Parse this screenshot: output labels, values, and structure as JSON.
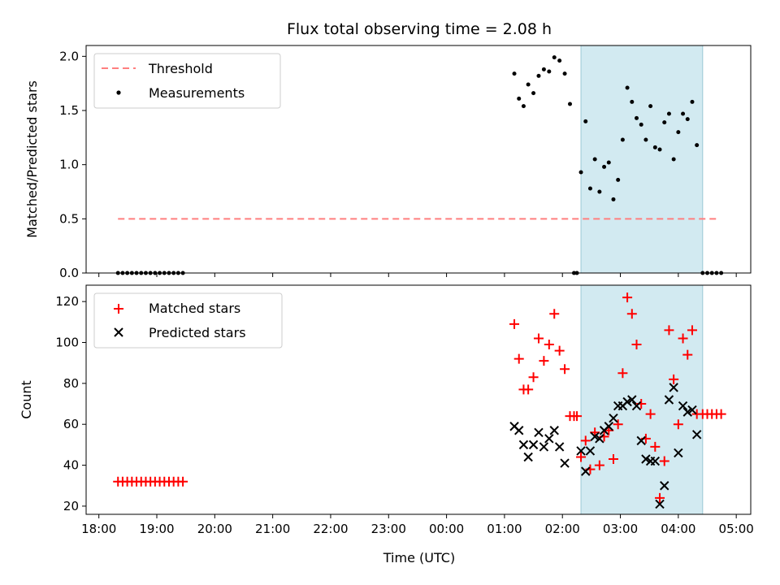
{
  "title": "Flux total observing time = 2.08 h",
  "colors": {
    "threshold": "#ff7f7f",
    "measurement": "#000000",
    "matched": "#ff0000",
    "predicted": "#000000",
    "span_fill": "#add8e6"
  },
  "chart_data": [
    {
      "type": "scatter",
      "panel": "top",
      "ylabel": "Matched/Predicted stars",
      "ylim": [
        0,
        2.1
      ],
      "yticks": [
        0,
        0.5,
        1.0,
        1.5,
        2.0
      ],
      "ytick_labels": [
        "0.0",
        "0.5",
        "1.0",
        "1.5",
        "2.0"
      ],
      "xaxis": "time (hours since 18:00 UTC of day 1)",
      "xlim": [
        -0.22,
        11.25
      ],
      "shaded_span": [
        8.32,
        10.42
      ],
      "legend": {
        "position": "upper-left",
        "entries": [
          "Threshold",
          "Measurements"
        ]
      },
      "threshold": {
        "name": "Threshold",
        "y": 0.5,
        "x_range": [
          0.33,
          10.7
        ]
      },
      "measurements": {
        "name": "Measurements",
        "x": [
          0.33,
          0.41,
          0.49,
          0.57,
          0.65,
          0.73,
          0.81,
          0.89,
          0.97,
          1.05,
          1.13,
          1.21,
          1.29,
          1.37,
          1.45,
          7.17,
          7.25,
          7.33,
          7.41,
          7.5,
          7.59,
          7.68,
          7.77,
          7.86,
          7.95,
          8.04,
          8.13,
          8.2,
          8.25,
          8.32,
          8.4,
          8.48,
          8.56,
          8.64,
          8.72,
          8.8,
          8.88,
          8.96,
          9.04,
          9.12,
          9.2,
          9.28,
          9.36,
          9.44,
          9.52,
          9.6,
          9.68,
          9.76,
          9.84,
          9.92,
          10.0,
          10.08,
          10.16,
          10.24,
          10.32,
          10.42,
          10.5,
          10.58,
          10.66,
          10.74
        ],
        "y": [
          0,
          0,
          0,
          0,
          0,
          0,
          0,
          0,
          0,
          0,
          0,
          0,
          0,
          0,
          0,
          1.84,
          1.61,
          1.54,
          1.74,
          1.66,
          1.82,
          1.88,
          1.86,
          1.99,
          1.96,
          1.84,
          1.56,
          0,
          0,
          0.93,
          1.4,
          0.78,
          1.05,
          0.75,
          0.98,
          1.02,
          0.68,
          0.86,
          1.23,
          1.71,
          1.58,
          1.43,
          1.37,
          1.23,
          1.54,
          1.16,
          1.14,
          1.39,
          1.47,
          1.05,
          1.3,
          1.47,
          1.42,
          1.58,
          1.18,
          0,
          0,
          0,
          0,
          0
        ]
      }
    },
    {
      "type": "scatter",
      "panel": "bottom",
      "ylabel": "Count",
      "xlabel": "Time (UTC)",
      "ylim": [
        16,
        128
      ],
      "yticks": [
        20,
        40,
        60,
        80,
        100,
        120
      ],
      "ytick_labels": [
        "20",
        "40",
        "60",
        "80",
        "100",
        "120"
      ],
      "xticks": [
        0,
        1,
        2,
        3,
        4,
        5,
        6,
        7,
        8,
        9,
        10,
        11
      ],
      "xtick_labels": [
        "18:00",
        "19:00",
        "20:00",
        "21:00",
        "22:00",
        "23:00",
        "00:00",
        "01:00",
        "02:00",
        "03:00",
        "04:00",
        "05:00"
      ],
      "xlim": [
        -0.22,
        11.25
      ],
      "shaded_span": [
        8.32,
        10.42
      ],
      "legend": {
        "position": "upper-left",
        "entries": [
          "Matched stars",
          "Predicted stars"
        ]
      },
      "series": [
        {
          "name": "Matched stars",
          "marker": "+",
          "x": [
            0.33,
            0.41,
            0.49,
            0.57,
            0.65,
            0.73,
            0.81,
            0.89,
            0.97,
            1.05,
            1.13,
            1.21,
            1.29,
            1.37,
            1.45,
            7.17,
            7.25,
            7.33,
            7.41,
            7.5,
            7.59,
            7.68,
            7.77,
            7.86,
            7.95,
            8.04,
            8.13,
            8.2,
            8.25,
            8.32,
            8.4,
            8.48,
            8.56,
            8.64,
            8.72,
            8.8,
            8.88,
            8.96,
            9.04,
            9.12,
            9.2,
            9.28,
            9.36,
            9.44,
            9.52,
            9.6,
            9.68,
            9.76,
            9.84,
            9.92,
            10.0,
            10.08,
            10.16,
            10.24,
            10.32,
            10.42,
            10.5,
            10.58,
            10.66,
            10.74
          ],
          "y": [
            32,
            32,
            32,
            32,
            32,
            32,
            32,
            32,
            32,
            32,
            32,
            32,
            32,
            32,
            32,
            109,
            92,
            77,
            77,
            83,
            102,
            91,
            99,
            114,
            96,
            87,
            64,
            64,
            64,
            44,
            52,
            38,
            56,
            40,
            54,
            57,
            43,
            60,
            85,
            122,
            114,
            99,
            70,
            53,
            65,
            49,
            24,
            42,
            106,
            82,
            60,
            102,
            94,
            106,
            65,
            65,
            65,
            65,
            65,
            65
          ]
        },
        {
          "name": "Predicted stars",
          "marker": "x",
          "x": [
            7.17,
            7.25,
            7.33,
            7.41,
            7.5,
            7.59,
            7.68,
            7.77,
            7.86,
            7.95,
            8.04,
            8.32,
            8.4,
            8.48,
            8.56,
            8.64,
            8.72,
            8.8,
            8.88,
            8.96,
            9.04,
            9.12,
            9.2,
            9.28,
            9.36,
            9.44,
            9.52,
            9.6,
            9.68,
            9.76,
            9.84,
            9.92,
            10.0,
            10.08,
            10.16,
            10.24,
            10.32
          ],
          "y": [
            59,
            57,
            50,
            44,
            50,
            56,
            49,
            53,
            57,
            49,
            41,
            47,
            37,
            47,
            54,
            53,
            57,
            59,
            63,
            69,
            69,
            71,
            72,
            69,
            52,
            43,
            42,
            42,
            21,
            30,
            72,
            78,
            46,
            69,
            66,
            67,
            55
          ]
        }
      ]
    }
  ]
}
